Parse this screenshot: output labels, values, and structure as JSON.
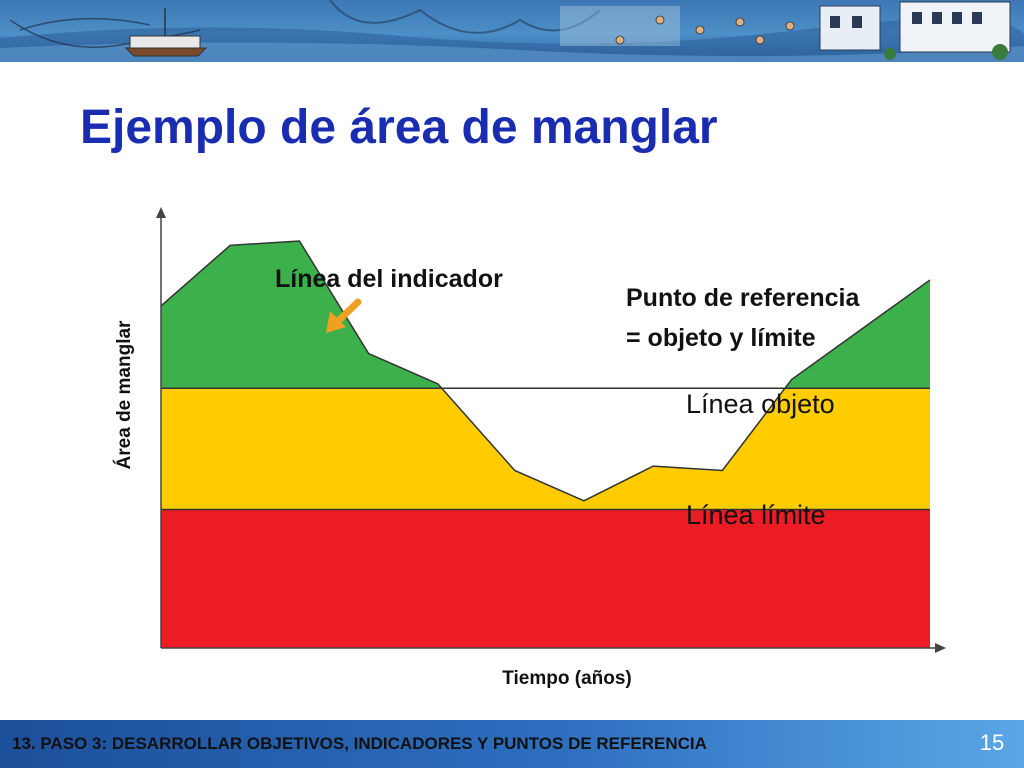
{
  "slide": {
    "title": "Ejemplo de área de manglar",
    "footer": "13. PASO 3: DESARROLLAR OBJETIVOS, INDICADORES Y PUNTOS DE REFERENCIA",
    "page_number": "15"
  },
  "colors": {
    "title": "#1a2cb0",
    "green_zone": "#3cb04a",
    "yellow_zone": "#ffcc00",
    "red_zone": "#ec1c24",
    "arrow": "#f0a020"
  },
  "chart_data": {
    "type": "area",
    "xlabel": "Tiempo (años)",
    "ylabel": "Área de manglar",
    "ylim": [
      0,
      100
    ],
    "xlim": [
      0,
      100
    ],
    "grid": false,
    "ticks": false,
    "series": [
      {
        "name": "Línea del indicador",
        "points": [
          {
            "x": 0,
            "y": 79
          },
          {
            "x": 9,
            "y": 93
          },
          {
            "x": 18,
            "y": 94
          },
          {
            "x": 27,
            "y": 68
          },
          {
            "x": 36,
            "y": 61
          },
          {
            "x": 46,
            "y": 41
          },
          {
            "x": 55,
            "y": 34
          },
          {
            "x": 64,
            "y": 42
          },
          {
            "x": 73,
            "y": 41
          },
          {
            "x": 82,
            "y": 62
          },
          {
            "x": 100,
            "y": 85
          }
        ]
      }
    ],
    "reference_lines": [
      {
        "name": "Línea objeto",
        "y": 60
      },
      {
        "name": "Línea límite",
        "y": 32
      }
    ],
    "annotations": {
      "indicator": "Línea del indicador",
      "reference_point_1": "Punto de referencia",
      "reference_point_2": "= objeto y límite"
    }
  }
}
